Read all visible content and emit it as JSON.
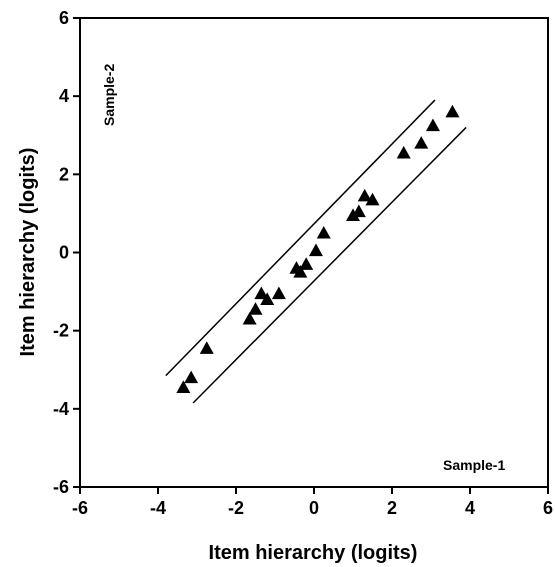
{
  "chart_data": {
    "type": "scatter",
    "xlabel": "Item hierarchy (logits)",
    "ylabel": "Item hierarchy (logits)",
    "xlim": [
      -6,
      6
    ],
    "ylim": [
      -6,
      6
    ],
    "x_ticks": [
      "-6",
      "-4",
      "-2",
      "0",
      "2",
      "4",
      "6"
    ],
    "y_ticks": [
      "-6",
      "-4",
      "-2",
      "0",
      "2",
      "4",
      "6"
    ],
    "grid": false,
    "marker": "triangle",
    "annotations": {
      "top_left": "Sample-2",
      "bottom_right": "Sample-1"
    },
    "points": [
      {
        "x": -3.35,
        "y": -3.45
      },
      {
        "x": -3.15,
        "y": -3.2
      },
      {
        "x": -2.75,
        "y": -2.45
      },
      {
        "x": -1.65,
        "y": -1.7
      },
      {
        "x": -1.5,
        "y": -1.45
      },
      {
        "x": -1.35,
        "y": -1.05
      },
      {
        "x": -1.2,
        "y": -1.2
      },
      {
        "x": -0.9,
        "y": -1.05
      },
      {
        "x": -0.45,
        "y": -0.4
      },
      {
        "x": -0.35,
        "y": -0.5
      },
      {
        "x": -0.2,
        "y": -0.3
      },
      {
        "x": 0.05,
        "y": 0.05
      },
      {
        "x": 0.25,
        "y": 0.5
      },
      {
        "x": 1.0,
        "y": 0.95
      },
      {
        "x": 1.15,
        "y": 1.05
      },
      {
        "x": 1.3,
        "y": 1.45
      },
      {
        "x": 1.5,
        "y": 1.35
      },
      {
        "x": 2.3,
        "y": 2.55
      },
      {
        "x": 2.75,
        "y": 2.8
      },
      {
        "x": 3.05,
        "y": 3.25
      },
      {
        "x": 3.55,
        "y": 3.6
      }
    ],
    "lines": [
      {
        "name": "upper",
        "x": [
          -3.8,
          3.1
        ],
        "y": [
          -3.15,
          3.9
        ]
      },
      {
        "name": "lower",
        "x": [
          -3.1,
          3.9
        ],
        "y": [
          -3.85,
          3.2
        ]
      }
    ]
  }
}
